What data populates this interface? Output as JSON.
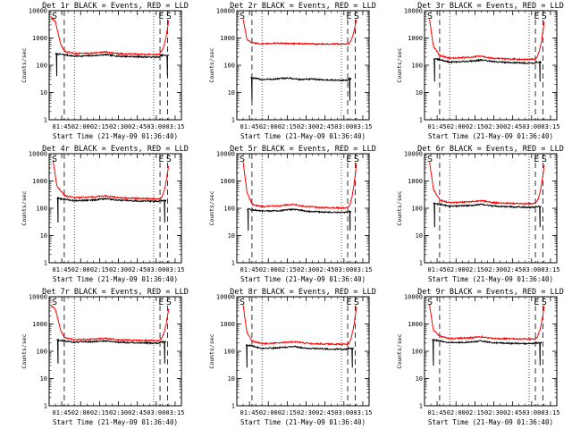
{
  "colors": {
    "events": "#000000",
    "lld": "#ff0000",
    "axes": "#000000",
    "background": "#ffffff"
  },
  "chart_data": [
    {
      "type": "line",
      "title": "Det 1r BLACK = Events, RED = LLD",
      "xlabel": "Start Time (21-May-09 01:36:40)",
      "ylabel": "Counts/sec",
      "ytick_labels": [
        "1",
        "10",
        "100",
        "1000",
        "10000"
      ],
      "ylim": [
        1,
        10000
      ],
      "yscale": "log",
      "xtick_labels": [
        "01:45",
        "02:00",
        "02:15",
        "02:30",
        "02:45",
        "03:00",
        "03:15"
      ],
      "xlim_minutes": [
        95,
        200
      ],
      "xtick_minutes": [
        105,
        120,
        135,
        150,
        165,
        180,
        195
      ],
      "markers": {
        "S_left": 100,
        "S_right": 190,
        "E": 184,
        "dashed_lines": [
          107,
          183,
          189
        ],
        "dotted_lines": [
          115,
          178
        ]
      },
      "series": [
        {
          "name": "Events",
          "color": "#000000",
          "start": 100,
          "end": 190,
          "plateau": 230,
          "startup_peak": 260,
          "tail_peak": 230,
          "min_dip": 40,
          "x": [
            101,
            107,
            115,
            130,
            140,
            150,
            165,
            178,
            183
          ],
          "values": [
            260,
            245,
            215,
            225,
            245,
            215,
            205,
            198,
            200
          ]
        },
        {
          "name": "LLD",
          "color": "#ff0000",
          "start": 96,
          "end": 190,
          "plateau": 300,
          "startup_peak": 6000,
          "tail_peak": 5000,
          "min_dip": null,
          "x": [
            96,
            100,
            104,
            107,
            115,
            130,
            140,
            150,
            165,
            178,
            183
          ],
          "values": [
            6000,
            4000,
            600,
            330,
            270,
            280,
            310,
            265,
            255,
            248,
            250
          ]
        }
      ]
    },
    {
      "type": "line",
      "title": "Det 2r BLACK = Events, RED = LLD",
      "xlabel": "Start Time (21-May-09 01:36:40)",
      "ylabel": "Counts/sec",
      "ytick_labels": [
        "1",
        "10",
        "100",
        "1000",
        "10000"
      ],
      "ylim": [
        1,
        10000
      ],
      "yscale": "log",
      "xtick_labels": [
        "01:45",
        "02:00",
        "02:15",
        "02:30",
        "02:45",
        "03:00",
        "03:15"
      ],
      "xlim_minutes": [
        95,
        200
      ],
      "xtick_minutes": [
        105,
        120,
        135,
        150,
        165,
        180,
        195
      ],
      "markers": {
        "S_left": 100,
        "S_right": 190,
        "E": 184,
        "dashed_lines": [
          107,
          183,
          189
        ],
        "dotted_lines": [
          115,
          178
        ]
      },
      "series": [
        {
          "name": "Events",
          "color": "#000000",
          "start": 106,
          "end": 186,
          "plateau": 32,
          "startup_peak": 35,
          "tail_peak": 32,
          "min_dip": 5,
          "x": [
            107,
            115,
            125,
            135,
            145,
            155,
            165,
            178,
            183
          ],
          "values": [
            34,
            30,
            31,
            34,
            30,
            31,
            29,
            28,
            28
          ]
        },
        {
          "name": "LLD",
          "color": "#ff0000",
          "start": 100,
          "end": 190,
          "plateau": 600,
          "startup_peak": 6500,
          "tail_peak": 5000,
          "min_dip": null,
          "x": [
            100,
            103,
            107,
            115,
            130,
            150,
            165,
            178,
            183
          ],
          "values": [
            5000,
            900,
            650,
            620,
            640,
            610,
            600,
            600,
            600
          ]
        }
      ]
    },
    {
      "type": "line",
      "title": "Det 3r BLACK = Events, RED = LLD",
      "xlabel": "Start Time (21-May-09 01:36:40)",
      "ylabel": "Counts/sec",
      "ytick_labels": [
        "1",
        "10",
        "100",
        "1000",
        "10000"
      ],
      "ylim": [
        1,
        10000
      ],
      "yscale": "log",
      "xtick_labels": [
        "01:45",
        "02:00",
        "02:15",
        "02:30",
        "02:45",
        "03:00",
        "03:15"
      ],
      "xlim_minutes": [
        95,
        200
      ],
      "xtick_minutes": [
        105,
        120,
        135,
        150,
        165,
        180,
        195
      ],
      "markers": {
        "S_left": 100,
        "S_right": 190,
        "E": 184,
        "dashed_lines": [
          107,
          183,
          189
        ],
        "dotted_lines": [
          115,
          178
        ]
      },
      "series": [
        {
          "name": "Events",
          "color": "#000000",
          "start": 102,
          "end": 188,
          "plateau": 130,
          "startup_peak": 170,
          "tail_peak": 130,
          "min_dip": 25,
          "x": [
            103,
            107,
            115,
            130,
            140,
            150,
            165,
            178,
            183
          ],
          "values": [
            170,
            160,
            130,
            140,
            155,
            135,
            125,
            120,
            122
          ]
        },
        {
          "name": "LLD",
          "color": "#ff0000",
          "start": 99,
          "end": 190,
          "plateau": 180,
          "startup_peak": 5000,
          "tail_peak": 4000,
          "min_dip": null,
          "x": [
            99,
            102,
            107,
            115,
            130,
            140,
            150,
            165,
            178,
            183
          ],
          "values": [
            5000,
            500,
            230,
            180,
            195,
            215,
            180,
            170,
            165,
            168
          ]
        }
      ]
    },
    {
      "type": "line",
      "title": "Det 4r BLACK = Events, RED = LLD",
      "xlabel": "Start Time (21-May-09 01:36:40)",
      "ylabel": "Counts/sec",
      "ytick_labels": [
        "1",
        "10",
        "100",
        "1000",
        "10000"
      ],
      "ylim": [
        1,
        10000
      ],
      "yscale": "log",
      "xtick_labels": [
        "01:45",
        "02:00",
        "02:15",
        "02:30",
        "02:45",
        "03:00",
        "03:15"
      ],
      "xlim_minutes": [
        95,
        200
      ],
      "xtick_minutes": [
        105,
        120,
        135,
        150,
        165,
        180,
        195
      ],
      "markers": {
        "S_left": 100,
        "S_right": 190,
        "E": 184,
        "dashed_lines": [
          107,
          183,
          189
        ],
        "dotted_lines": [
          115,
          178
        ]
      },
      "series": [
        {
          "name": "Events",
          "color": "#000000",
          "start": 101,
          "end": 188,
          "plateau": 190,
          "startup_peak": 230,
          "tail_peak": 190,
          "min_dip": 30,
          "x": [
            102,
            107,
            115,
            130,
            140,
            150,
            165,
            178,
            183
          ],
          "values": [
            230,
            215,
            190,
            200,
            225,
            195,
            185,
            180,
            182
          ]
        },
        {
          "name": "LLD",
          "color": "#ff0000",
          "start": 98,
          "end": 190,
          "plateau": 240,
          "startup_peak": 6000,
          "tail_peak": 4500,
          "min_dip": null,
          "x": [
            98,
            101,
            107,
            115,
            130,
            140,
            150,
            165,
            178,
            183
          ],
          "values": [
            6000,
            700,
            290,
            245,
            260,
            285,
            240,
            230,
            222,
            225
          ]
        }
      ]
    },
    {
      "type": "line",
      "title": "Det 5r BLACK = Events, RED = LLD",
      "xlabel": "Start Time (21-May-09 01:36:40)",
      "ylabel": "Counts/sec",
      "ytick_labels": [
        "1",
        "10",
        "100",
        "1000",
        "10000"
      ],
      "ylim": [
        1,
        10000
      ],
      "yscale": "log",
      "xtick_labels": [
        "01:45",
        "02:00",
        "02:15",
        "02:30",
        "02:45",
        "03:00",
        "03:15"
      ],
      "xlim_minutes": [
        95,
        200
      ],
      "xtick_minutes": [
        105,
        120,
        135,
        150,
        165,
        180,
        195
      ],
      "markers": {
        "S_left": 100,
        "S_right": 190,
        "E": 184,
        "dashed_lines": [
          107,
          183,
          189
        ],
        "dotted_lines": [
          115,
          178
        ]
      },
      "series": [
        {
          "name": "Events",
          "color": "#000000",
          "start": 103,
          "end": 186,
          "plateau": 75,
          "startup_peak": 95,
          "tail_peak": 75,
          "min_dip": 15,
          "x": [
            104,
            107,
            115,
            130,
            140,
            150,
            165,
            178,
            183
          ],
          "values": [
            95,
            88,
            78,
            82,
            92,
            78,
            72,
            70,
            71
          ]
        },
        {
          "name": "LLD",
          "color": "#ff0000",
          "start": 100,
          "end": 190,
          "plateau": 110,
          "startup_peak": 5000,
          "tail_peak": 4500,
          "min_dip": null,
          "x": [
            100,
            103,
            107,
            115,
            130,
            140,
            150,
            165,
            178,
            183
          ],
          "values": [
            5000,
            400,
            140,
            115,
            125,
            140,
            115,
            105,
            102,
            104
          ]
        }
      ]
    },
    {
      "type": "line",
      "title": "Det 6r BLACK = Events, RED = LLD",
      "xlabel": "Start Time (21-May-09 01:36:40)",
      "ylabel": "Counts/sec",
      "ytick_labels": [
        "1",
        "10",
        "100",
        "1000",
        "10000"
      ],
      "ylim": [
        1,
        10000
      ],
      "yscale": "log",
      "xtick_labels": [
        "01:45",
        "02:00",
        "02:15",
        "02:30",
        "02:45",
        "03:00",
        "03:15"
      ],
      "xlim_minutes": [
        95,
        200
      ],
      "xtick_minutes": [
        105,
        120,
        135,
        150,
        165,
        180,
        195
      ],
      "markers": {
        "S_left": 100,
        "S_right": 190,
        "E": 184,
        "dashed_lines": [
          107,
          183,
          189
        ],
        "dotted_lines": [
          115,
          178
        ]
      },
      "series": [
        {
          "name": "Events",
          "color": "#000000",
          "start": 102,
          "end": 188,
          "plateau": 115,
          "startup_peak": 150,
          "tail_peak": 115,
          "min_dip": 20,
          "x": [
            103,
            107,
            115,
            130,
            140,
            150,
            165,
            178,
            183
          ],
          "values": [
            150,
            140,
            118,
            125,
            138,
            120,
            112,
            108,
            110
          ]
        },
        {
          "name": "LLD",
          "color": "#ff0000",
          "start": 99,
          "end": 190,
          "plateau": 160,
          "startup_peak": 5000,
          "tail_peak": 4000,
          "min_dip": null,
          "x": [
            99,
            102,
            107,
            115,
            130,
            140,
            150,
            165,
            178,
            183
          ],
          "values": [
            5000,
            500,
            200,
            160,
            170,
            190,
            160,
            150,
            148,
            150
          ]
        }
      ]
    },
    {
      "type": "line",
      "title": "Det 7r BLACK = Events, RED = LLD",
      "xlabel": "Start Time (21-May-09 01:36:40)",
      "ylabel": "Counts/sec",
      "ytick_labels": [
        "1",
        "10",
        "100",
        "1000",
        "10000"
      ],
      "ylim": [
        1,
        10000
      ],
      "yscale": "log",
      "xtick_labels": [
        "01:45",
        "02:00",
        "02:15",
        "02:30",
        "02:45",
        "03:00",
        "03:15"
      ],
      "xlim_minutes": [
        95,
        200
      ],
      "xtick_minutes": [
        105,
        120,
        135,
        150,
        165,
        180,
        195
      ],
      "markers": {
        "S_left": 100,
        "S_right": 190,
        "E": 184,
        "dashed_lines": [
          107,
          183,
          189
        ],
        "dotted_lines": [
          115,
          178
        ]
      },
      "series": [
        {
          "name": "Events",
          "color": "#000000",
          "start": 101,
          "end": 188,
          "plateau": 220,
          "startup_peak": 260,
          "tail_peak": 220,
          "min_dip": 35,
          "x": [
            102,
            107,
            115,
            130,
            140,
            150,
            165,
            178,
            183
          ],
          "values": [
            260,
            240,
            215,
            225,
            240,
            215,
            205,
            198,
            200
          ]
        },
        {
          "name": "LLD",
          "color": "#ff0000",
          "start": 96,
          "end": 190,
          "plateau": 280,
          "startup_peak": 5000,
          "tail_peak": 4000,
          "min_dip": null,
          "x": [
            96,
            100,
            104,
            107,
            115,
            130,
            140,
            150,
            165,
            178,
            183
          ],
          "values": [
            5000,
            3500,
            600,
            320,
            265,
            275,
            300,
            260,
            250,
            245,
            248
          ]
        }
      ]
    },
    {
      "type": "line",
      "title": "Det 8r BLACK = Events, RED = LLD",
      "xlabel": "Start Time (21-May-09 01:36:40)",
      "ylabel": "Counts/sec",
      "ytick_labels": [
        "1",
        "10",
        "100",
        "1000",
        "10000"
      ],
      "ylim": [
        1,
        10000
      ],
      "yscale": "log",
      "xtick_labels": [
        "01:45",
        "02:00",
        "02:15",
        "02:30",
        "02:45",
        "03:00",
        "03:15"
      ],
      "xlim_minutes": [
        95,
        200
      ],
      "xtick_minutes": [
        105,
        120,
        135,
        150,
        165,
        180,
        195
      ],
      "markers": {
        "S_left": 100,
        "S_right": 190,
        "E": 184,
        "dashed_lines": [
          107,
          183,
          189
        ],
        "dotted_lines": [
          115,
          178
        ]
      },
      "series": [
        {
          "name": "Events",
          "color": "#000000",
          "start": 102,
          "end": 188,
          "plateau": 130,
          "startup_peak": 170,
          "tail_peak": 130,
          "min_dip": 25,
          "x": [
            103,
            107,
            115,
            130,
            140,
            150,
            165,
            178,
            183
          ],
          "values": [
            170,
            155,
            128,
            135,
            150,
            130,
            122,
            118,
            120
          ]
        },
        {
          "name": "LLD",
          "color": "#ff0000",
          "start": 100,
          "end": 190,
          "plateau": 190,
          "startup_peak": 5000,
          "tail_peak": 4500,
          "min_dip": null,
          "x": [
            100,
            103,
            107,
            115,
            130,
            140,
            150,
            165,
            178,
            183
          ],
          "values": [
            5000,
            500,
            240,
            190,
            205,
            225,
            195,
            185,
            180,
            183
          ]
        }
      ]
    },
    {
      "type": "line",
      "title": "Det 9r BLACK = Events, RED = LLD",
      "xlabel": "Start Time (21-May-09 01:36:40)",
      "ylabel": "Counts/sec",
      "ytick_labels": [
        "1",
        "10",
        "100",
        "1000",
        "10000"
      ],
      "ylim": [
        1,
        10000
      ],
      "yscale": "log",
      "xtick_labels": [
        "01:45",
        "02:00",
        "02:15",
        "02:30",
        "02:45",
        "03:00",
        "03:15"
      ],
      "xlim_minutes": [
        95,
        200
      ],
      "xtick_minutes": [
        105,
        120,
        135,
        150,
        165,
        180,
        195
      ],
      "markers": {
        "S_left": 100,
        "S_right": 190,
        "E": 184,
        "dashed_lines": [
          107,
          183,
          189
        ],
        "dotted_lines": [
          115,
          178
        ]
      },
      "series": [
        {
          "name": "Events",
          "color": "#000000",
          "start": 101,
          "end": 188,
          "plateau": 200,
          "startup_peak": 260,
          "tail_peak": 200,
          "min_dip": 30,
          "x": [
            102,
            107,
            115,
            130,
            140,
            150,
            165,
            178,
            183
          ],
          "values": [
            260,
            240,
            205,
            215,
            235,
            205,
            195,
            190,
            192
          ]
        },
        {
          "name": "LLD",
          "color": "#ff0000",
          "start": 99,
          "end": 190,
          "plateau": 300,
          "startup_peak": 5000,
          "tail_peak": 4500,
          "min_dip": null,
          "x": [
            99,
            102,
            107,
            115,
            130,
            140,
            150,
            165,
            178,
            183
          ],
          "values": [
            5000,
            600,
            360,
            290,
            310,
            340,
            295,
            285,
            280,
            282
          ]
        }
      ]
    }
  ]
}
